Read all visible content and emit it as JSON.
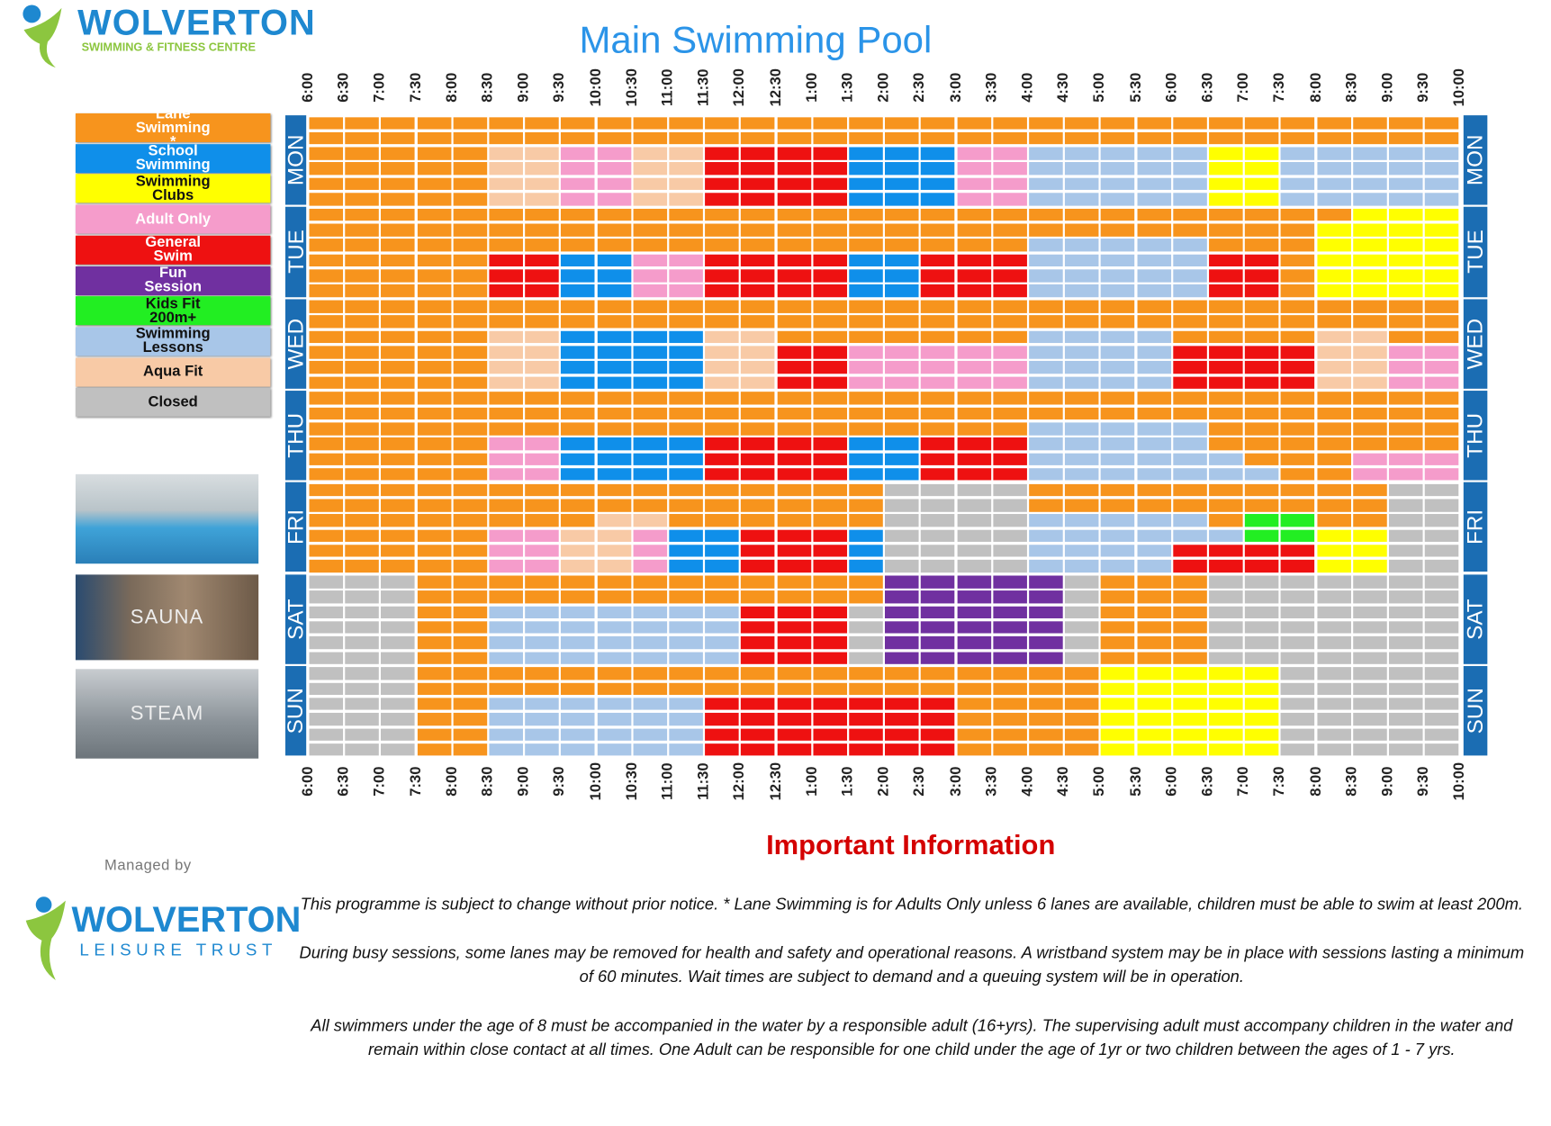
{
  "header": {
    "logo": {
      "name": "WOLVERTON",
      "tagline": "SWIMMING & FITNESS CENTRE"
    },
    "title": "Main Swimming Pool"
  },
  "times": [
    "6:00",
    "6:30",
    "7:00",
    "7:30",
    "8:00",
    "8:30",
    "9:00",
    "9:30",
    "10:00",
    "10:30",
    "11:00",
    "11:30",
    "12:00",
    "12:30",
    "1:00",
    "1:30",
    "2:00",
    "2:30",
    "3:00",
    "3:30",
    "4:00",
    "4:30",
    "5:00",
    "5:30",
    "6:00",
    "6:30",
    "7:00",
    "7:30",
    "8:00",
    "8:30",
    "9:00",
    "9:30",
    "10:00"
  ],
  "legend": [
    {
      "label": "Lane Swimming *",
      "color": "#f7941d",
      "text_color": "#ffffff"
    },
    {
      "label": "School Swimming",
      "color": "#0f8fea",
      "text_color": "#ffffff"
    },
    {
      "label": "Swimming Clubs",
      "color": "#ffff00",
      "text_color": "#111111"
    },
    {
      "label": "Adult Only",
      "color": "#f59ccb",
      "text_color": "#ffffff"
    },
    {
      "label": "General Swim",
      "color": "#ee1111",
      "text_color": "#ffffff"
    },
    {
      "label": "Fun Session",
      "color": "#7030a0",
      "text_color": "#ffffff"
    },
    {
      "label": "Kids Fit 200m+",
      "color": "#22ee22",
      "text_color": "#111111"
    },
    {
      "label": "Swimming Lessons",
      "color": "#a8c6e8",
      "text_color": "#111111"
    },
    {
      "label": "Aqua Fit",
      "color": "#f8caa6",
      "text_color": "#111111"
    },
    {
      "label": "Closed",
      "color": "#c0c0c0",
      "text_color": "#111111"
    }
  ],
  "days": [
    {
      "label": "MON",
      "lanes": [
        "00000000000000000000000000000000",
        "00000000000000000000000000000000",
        "00000883388444411133777772277777",
        "00000883388444411133777772277777",
        "00000883388444411133777772277777",
        "00000883388444411133777772277777"
      ]
    },
    {
      "label": "TUE",
      "lanes": [
        "00000000000000000000000000000222",
        "00000000000000000000000000002222",
        "00000000000000000000777770002222",
        "00000441133444411444777774402222",
        "00000441133444411444777774402222",
        "00000441133444411444777774402222"
      ]
    },
    {
      "label": "WED",
      "lanes": [
        "00000000000000000000000000000000",
        "00000000000000000000000000000000",
        "00000881111880000000777700008800",
        "00000881111884433333777744448833",
        "00000881111884433333777744448833",
        "00000881111884433333777744448833"
      ]
    },
    {
      "label": "THU",
      "lanes": [
        "00000000000000000000000000000000",
        "00000000000000000000000000000000",
        "00000000000000000000777770000000",
        "00000331111444411444777770000000",
        "00000331111444411444777777000333",
        "00000331111444411444777777700333"
      ]
    },
    {
      "label": "FRI",
      "lanes": [
        "00000000000000009999000000000099",
        "00000000000000009999000000000099",
        "00000000880000009999777770660099",
        "00000338831144419999777777662299",
        "00000338831144419999777744442299",
        "00000338831144419999777744442299"
      ]
    },
    {
      "label": "SAT",
      "lanes": [
        "99900000000000005555590009999999",
        "99900000000000005555590009999999",
        "99900777777744495555590009999999",
        "99900777777744495555590009999999",
        "99900777777744495555590009999999",
        "99900777777744495555590009999999"
      ]
    },
    {
      "label": "SUN",
      "lanes": [
        "99900000000000000000002222299999",
        "99900000000000000000002222299999",
        "99900777777444444400002222299999",
        "99900777777444444400002222299999",
        "99900777777444444400002222299999",
        "99900777777444444400002222299999"
      ]
    }
  ],
  "photo_labels": [
    "SAUNA",
    "STEAM"
  ],
  "footer": {
    "managed_by": "Managed by",
    "logo": {
      "name": "WOLVERTON",
      "tagline": "LEISURE TRUST"
    },
    "heading": "Important Information",
    "paragraphs": [
      [
        "This programme is subject to change without prior notice.  * Lane Swimming is for Adults Only unless 6 lanes are available, children must be able to swim at least 200m."
      ],
      [
        "During busy sessions, some lanes may be removed for health and safety and operational reasons. A wristband system may be in place with sessions lasting a minimum",
        "of 60 minutes. Wait times are subject to demand and a queuing system will be in operation."
      ],
      [
        "All swimmers under the age of 8 must be accompanied in the water by a responsible adult (16+yrs). The supervising adult must accompany children in the water and",
        "remain within close contact at all times.  One Adult can be responsible for one child under the age of 1yr or two children between the ages of 1 - 7 yrs."
      ]
    ]
  }
}
